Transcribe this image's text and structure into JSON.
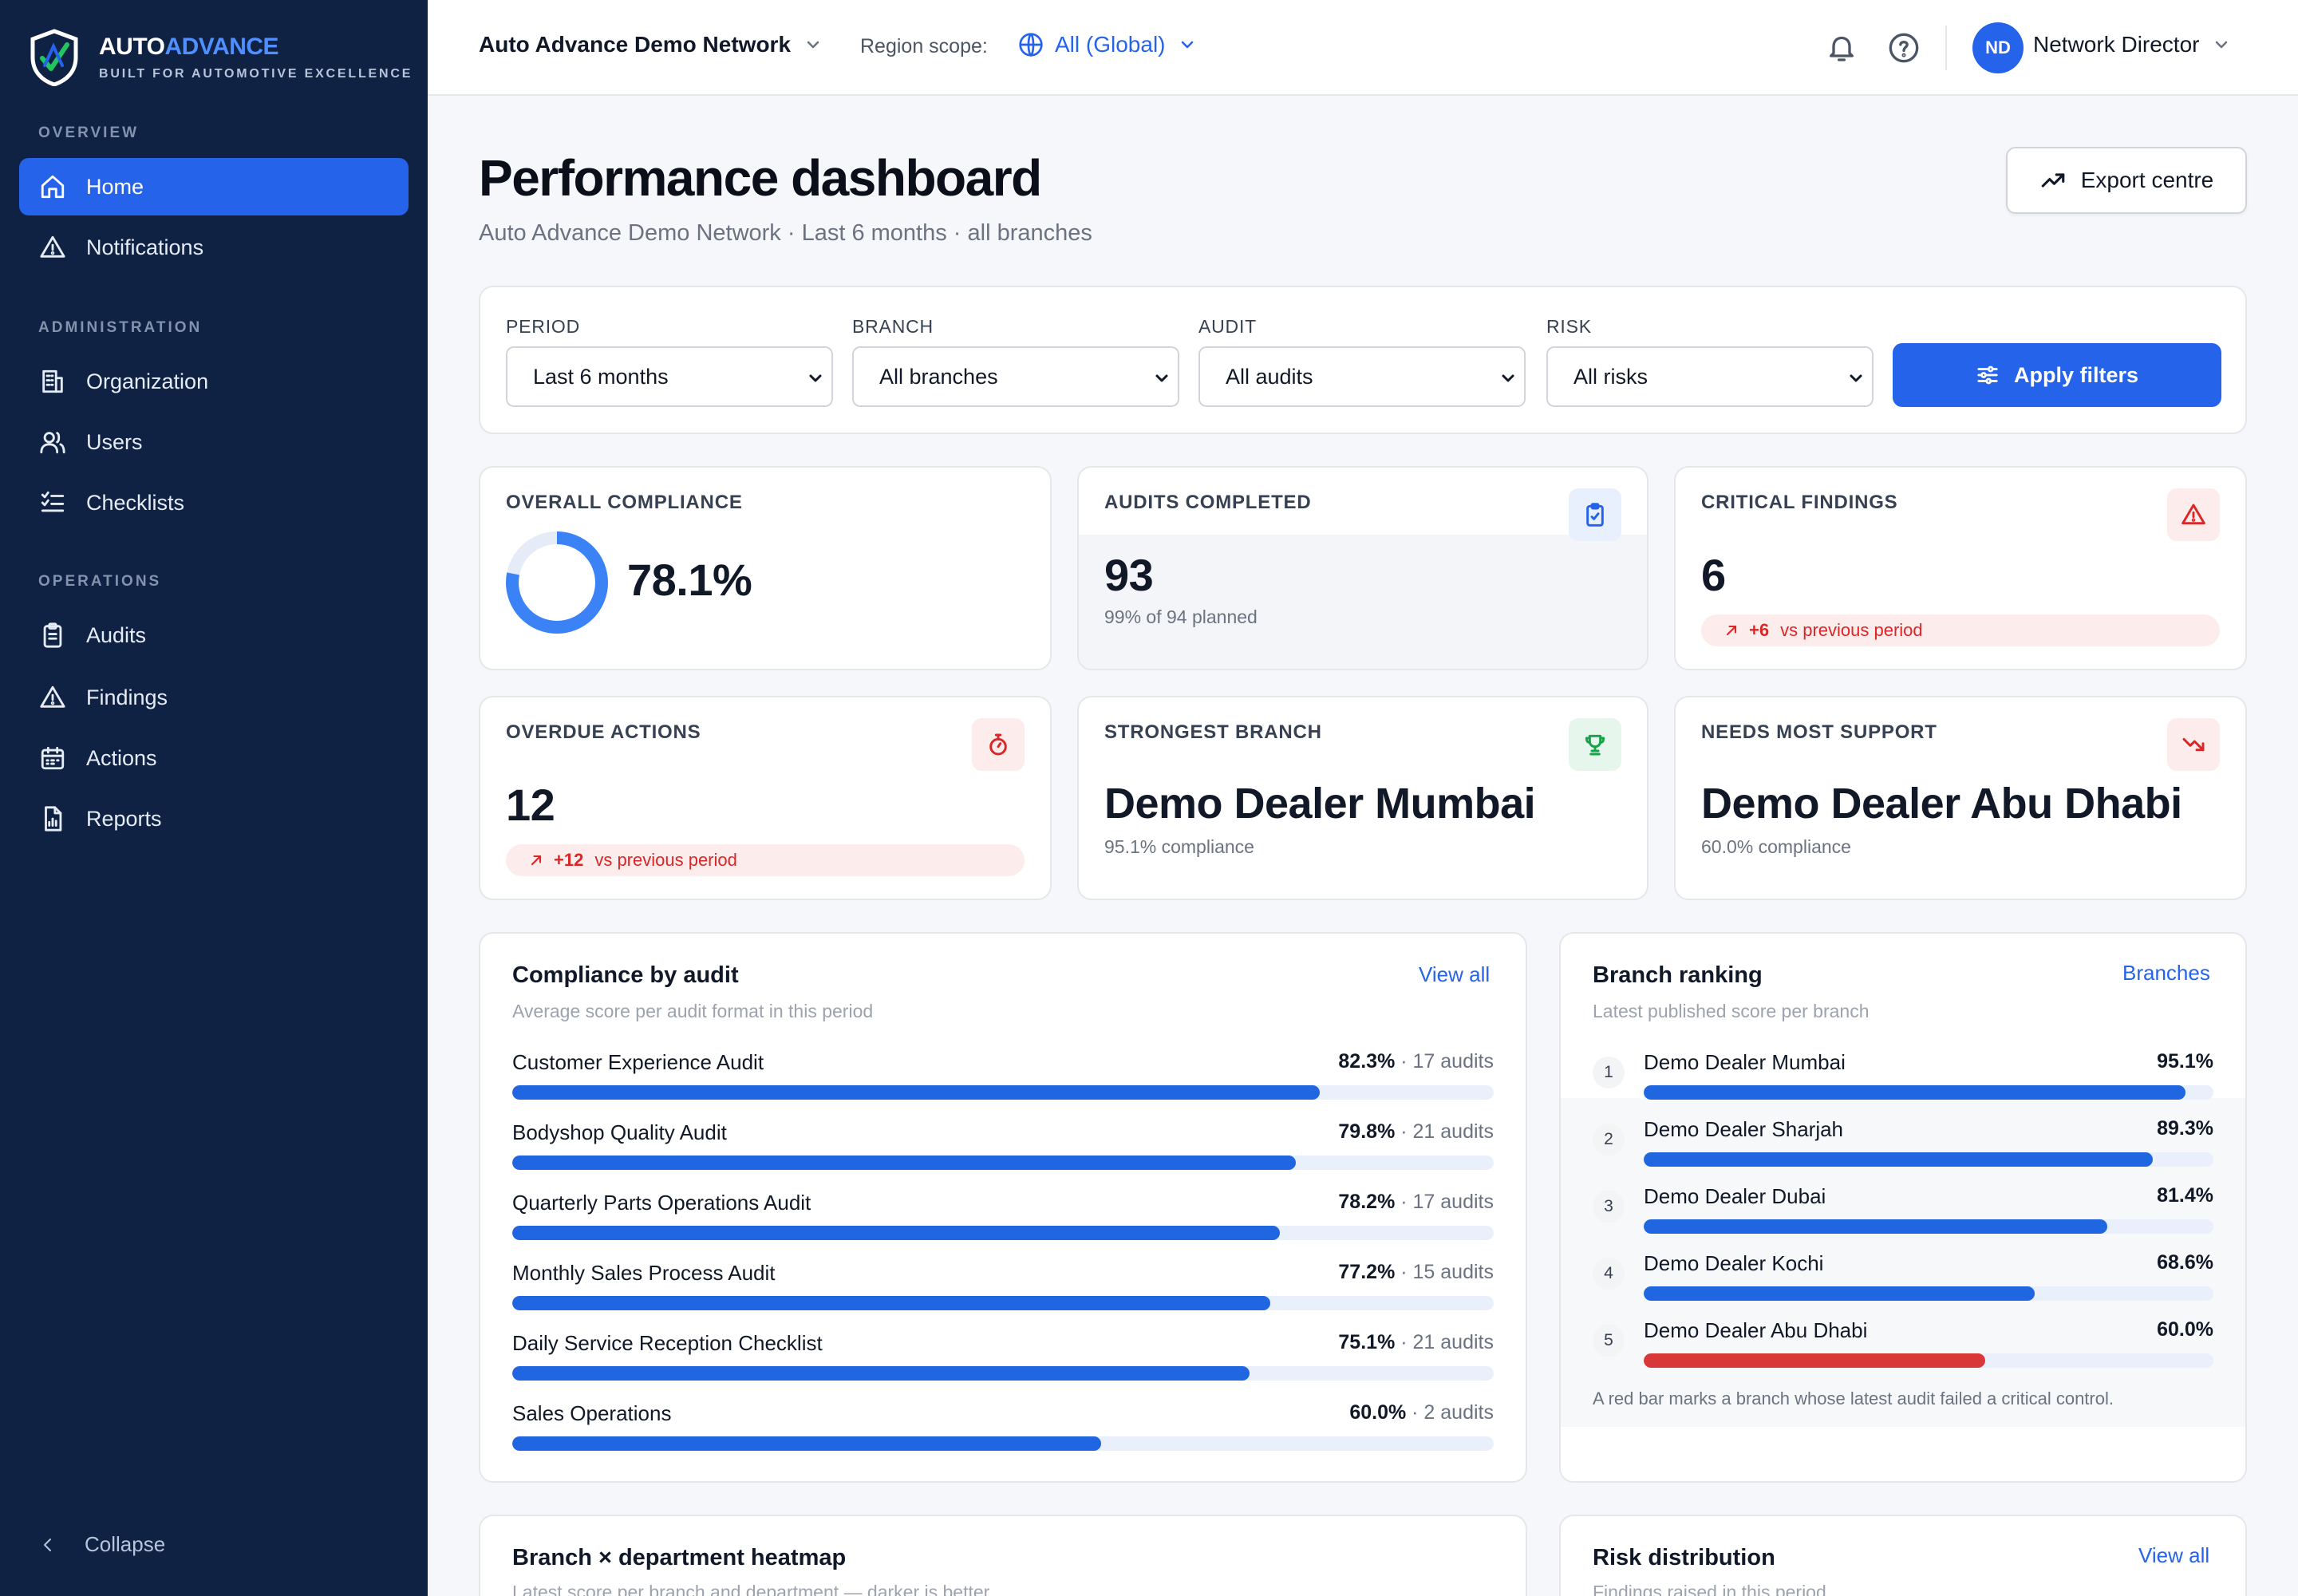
{
  "brand": {
    "name_part1": "AUTO",
    "name_part2": "ADVANCE",
    "tagline": "BUILT FOR AUTOMOTIVE EXCELLENCE",
    "accent": "#4f8fff"
  },
  "sidebar": {
    "sections": [
      "OVERVIEW",
      "ADMINISTRATION",
      "OPERATIONS"
    ],
    "items": [
      {
        "label": "Home",
        "icon": "home-icon",
        "active": true
      },
      {
        "label": "Notifications",
        "icon": "warning-icon"
      },
      {
        "label": "Organization",
        "icon": "building-icon"
      },
      {
        "label": "Users",
        "icon": "users-icon"
      },
      {
        "label": "Checklists",
        "icon": "checklist-icon"
      },
      {
        "label": "Audits",
        "icon": "clipboard-icon"
      },
      {
        "label": "Findings",
        "icon": "warning-icon"
      },
      {
        "label": "Actions",
        "icon": "calendar-icon"
      },
      {
        "label": "Reports",
        "icon": "report-icon"
      }
    ],
    "collapse_label": "Collapse"
  },
  "topbar": {
    "network": "Auto Advance Demo Network",
    "region_label": "Region scope:",
    "region_value": "All (Global)",
    "user_initials": "ND",
    "user_name": "Network Director"
  },
  "header": {
    "title": "Performance dashboard",
    "subtitle": "Auto Advance Demo Network · Last 6 months · all branches",
    "export_label": "Export centre"
  },
  "filters": {
    "period": {
      "label": "PERIOD",
      "value": "Last 6 months"
    },
    "branch": {
      "label": "BRANCH",
      "value": "All branches"
    },
    "audit": {
      "label": "AUDIT",
      "value": "All audits"
    },
    "risk": {
      "label": "RISK",
      "value": "All risks"
    },
    "apply_label": "Apply filters"
  },
  "kpis": {
    "compliance": {
      "label": "OVERALL COMPLIANCE",
      "value": "78.1%",
      "fraction": 0.781
    },
    "audits": {
      "label": "AUDITS COMPLETED",
      "value": "93",
      "sub": "99% of 94 planned"
    },
    "critical": {
      "label": "CRITICAL FINDINGS",
      "value": "6",
      "delta": "+6",
      "delta_text": "vs previous period"
    },
    "overdue": {
      "label": "OVERDUE ACTIONS",
      "value": "12",
      "delta": "+12",
      "delta_text": "vs previous period"
    },
    "strongest": {
      "label": "STRONGEST BRANCH",
      "value": "Demo Dealer Mumbai",
      "sub": "95.1% compliance"
    },
    "support": {
      "label": "NEEDS MOST SUPPORT",
      "value": "Demo Dealer Abu Dhabi",
      "sub": "60.0% compliance"
    }
  },
  "compliance_by_audit": {
    "title": "Compliance by audit",
    "subtitle": "Average score per audit format in this period",
    "link": "View all",
    "rows": [
      {
        "name": "Customer Experience Audit",
        "score": "82.3%",
        "count": "· 17 audits",
        "fraction": 0.823
      },
      {
        "name": "Bodyshop Quality Audit",
        "score": "79.8%",
        "count": "· 21 audits",
        "fraction": 0.798
      },
      {
        "name": "Quarterly Parts Operations Audit",
        "score": "78.2%",
        "count": "· 17 audits",
        "fraction": 0.782
      },
      {
        "name": "Monthly Sales Process Audit",
        "score": "77.2%",
        "count": "· 15 audits",
        "fraction": 0.772
      },
      {
        "name": "Daily Service Reception Checklist",
        "score": "75.1%",
        "count": "· 21 audits",
        "fraction": 0.751
      },
      {
        "name": "Sales Operations",
        "score": "60.0%",
        "count": "· 2 audits",
        "fraction": 0.6
      }
    ]
  },
  "branch_ranking": {
    "title": "Branch ranking",
    "subtitle": "Latest published score per branch",
    "link": "Branches",
    "rows": [
      {
        "rank": "1",
        "name": "Demo Dealer Mumbai",
        "score": "95.1%",
        "fraction": 0.951,
        "critical_fail": false
      },
      {
        "rank": "2",
        "name": "Demo Dealer Sharjah",
        "score": "89.3%",
        "fraction": 0.893,
        "critical_fail": false
      },
      {
        "rank": "3",
        "name": "Demo Dealer Dubai",
        "score": "81.4%",
        "fraction": 0.814,
        "critical_fail": false
      },
      {
        "rank": "4",
        "name": "Demo Dealer Kochi",
        "score": "68.6%",
        "fraction": 0.686,
        "critical_fail": false
      },
      {
        "rank": "5",
        "name": "Demo Dealer Abu Dhabi",
        "score": "60.0%",
        "fraction": 0.6,
        "critical_fail": true
      }
    ],
    "note": "A red bar marks a branch whose latest audit failed a critical control."
  },
  "heatmap": {
    "title": "Branch × department heatmap",
    "subtitle": "Latest score per branch and department — darker is better"
  },
  "risk": {
    "title": "Risk distribution",
    "subtitle": "Findings raised in this period",
    "link": "View all"
  },
  "colors": {
    "primary": "#2563eb",
    "sidebar": "#0f2244",
    "danger": "#dc2626"
  }
}
